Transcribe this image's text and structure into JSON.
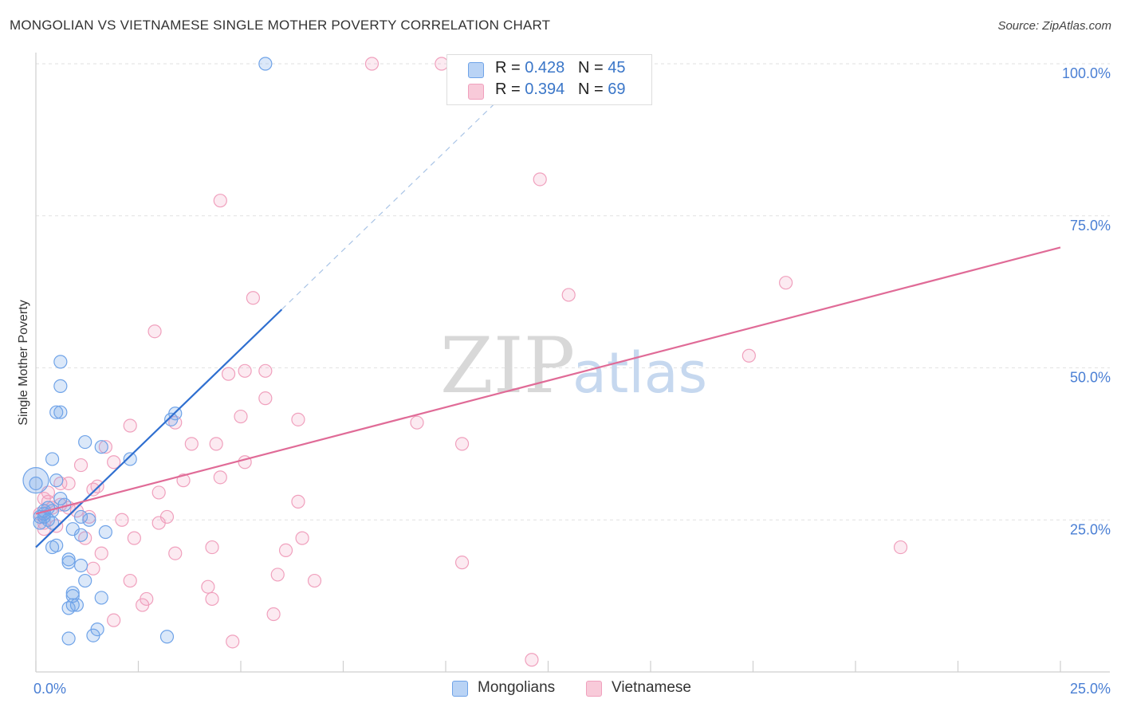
{
  "title": "MONGOLIAN VS VIETNAMESE SINGLE MOTHER POVERTY CORRELATION CHART",
  "source": "Source: ZipAtlas.com",
  "watermark": {
    "zip": "ZIP",
    "atlas": "atlas"
  },
  "legend": {
    "rows": [
      {
        "r_label": "R = ",
        "r_value": "0.428",
        "n_label": "N = ",
        "n_value": "45"
      },
      {
        "r_label": "R = ",
        "r_value": "0.394",
        "n_label": "N = ",
        "n_value": "69"
      }
    ]
  },
  "chart_data": {
    "type": "scatter",
    "title": "MONGOLIAN VS VIETNAMESE SINGLE MOTHER POVERTY CORRELATION CHART",
    "xlabel": "",
    "ylabel": "Single Mother Poverty",
    "xlim": [
      0,
      25
    ],
    "ylim": [
      0,
      100
    ],
    "x_tick_labels": [
      "0.0%",
      "25.0%"
    ],
    "y_tick_labels": [
      "25.0%",
      "50.0%",
      "75.0%",
      "100.0%"
    ],
    "y_tick_values": [
      25,
      50,
      75,
      100
    ],
    "grid": true,
    "legend_position": "top-center",
    "colors": {
      "mongolians": "#6fa3e8",
      "vietnamese": "#f0a0bd",
      "mongolians_line": "#2f6fd0",
      "vietnamese_line": "#e06b97"
    },
    "series": [
      {
        "name": "Mongolians",
        "r": 0.428,
        "n": 45,
        "trend": {
          "x0": 0.0,
          "y0": 20.5,
          "x1": 6.0,
          "y1": 59.6,
          "x_dash_end": 11.2
        },
        "points": [
          [
            5.6,
            100.0
          ],
          [
            0.6,
            51.0
          ],
          [
            0.6,
            47.0
          ],
          [
            0.5,
            42.7
          ],
          [
            0.6,
            42.7
          ],
          [
            3.3,
            41.5
          ],
          [
            3.4,
            42.5
          ],
          [
            1.2,
            37.8
          ],
          [
            1.6,
            37.0
          ],
          [
            2.3,
            35.0
          ],
          [
            0.4,
            35.0
          ],
          [
            0.0,
            31.0
          ],
          [
            0.5,
            31.5
          ],
          [
            0.6,
            28.5
          ],
          [
            0.7,
            27.5
          ],
          [
            0.3,
            27.0
          ],
          [
            0.4,
            26.5
          ],
          [
            0.2,
            26.5
          ],
          [
            0.2,
            25.5
          ],
          [
            0.3,
            25.0
          ],
          [
            0.1,
            25.5
          ],
          [
            0.4,
            24.5
          ],
          [
            1.1,
            25.5
          ],
          [
            1.3,
            25.0
          ],
          [
            0.9,
            23.5
          ],
          [
            1.7,
            23.0
          ],
          [
            1.1,
            22.5
          ],
          [
            0.4,
            20.5
          ],
          [
            0.5,
            20.8
          ],
          [
            0.8,
            18.5
          ],
          [
            0.8,
            18.0
          ],
          [
            1.1,
            17.5
          ],
          [
            1.2,
            15.0
          ],
          [
            0.9,
            13.0
          ],
          [
            0.9,
            12.5
          ],
          [
            1.6,
            12.2
          ],
          [
            0.9,
            11.0
          ],
          [
            0.8,
            10.5
          ],
          [
            1.0,
            11.0
          ],
          [
            1.5,
            7.0
          ],
          [
            1.4,
            6.0
          ],
          [
            0.8,
            5.5
          ],
          [
            3.2,
            5.8
          ],
          [
            0.1,
            24.5
          ],
          [
            0.2,
            26.0
          ]
        ]
      },
      {
        "name": "Vietnamese",
        "r": 0.394,
        "n": 69,
        "trend": {
          "x0": 0.0,
          "y0": 26.0,
          "x1": 25.0,
          "y1": 69.8
        },
        "points": [
          [
            8.2,
            100.0
          ],
          [
            9.9,
            100.0
          ],
          [
            12.3,
            81.0
          ],
          [
            4.5,
            77.5
          ],
          [
            18.3,
            64.0
          ],
          [
            13.0,
            62.0
          ],
          [
            5.3,
            61.5
          ],
          [
            2.9,
            56.0
          ],
          [
            17.4,
            52.0
          ],
          [
            4.7,
            49.0
          ],
          [
            5.1,
            49.5
          ],
          [
            5.6,
            49.5
          ],
          [
            5.6,
            45.0
          ],
          [
            5.0,
            42.0
          ],
          [
            6.4,
            41.5
          ],
          [
            9.3,
            41.0
          ],
          [
            2.3,
            40.5
          ],
          [
            3.4,
            41.0
          ],
          [
            10.4,
            37.5
          ],
          [
            3.8,
            37.5
          ],
          [
            4.4,
            37.5
          ],
          [
            1.7,
            37.0
          ],
          [
            1.9,
            34.5
          ],
          [
            5.1,
            34.5
          ],
          [
            1.1,
            34.0
          ],
          [
            4.5,
            32.0
          ],
          [
            3.6,
            31.5
          ],
          [
            1.5,
            30.5
          ],
          [
            0.6,
            31.0
          ],
          [
            0.8,
            31.0
          ],
          [
            1.4,
            30.0
          ],
          [
            0.3,
            29.5
          ],
          [
            3.0,
            29.5
          ],
          [
            0.2,
            28.5
          ],
          [
            0.3,
            28.0
          ],
          [
            0.6,
            27.5
          ],
          [
            0.4,
            27.0
          ],
          [
            0.8,
            27.0
          ],
          [
            1.0,
            26.5
          ],
          [
            1.3,
            25.5
          ],
          [
            2.1,
            25.0
          ],
          [
            3.0,
            24.5
          ],
          [
            3.2,
            25.5
          ],
          [
            2.4,
            22.0
          ],
          [
            1.2,
            22.0
          ],
          [
            6.5,
            22.0
          ],
          [
            6.4,
            28.0
          ],
          [
            0.2,
            24.5
          ],
          [
            0.5,
            24.0
          ],
          [
            0.2,
            23.5
          ],
          [
            4.3,
            20.5
          ],
          [
            6.1,
            20.0
          ],
          [
            1.6,
            19.5
          ],
          [
            3.4,
            19.5
          ],
          [
            10.4,
            18.0
          ],
          [
            21.1,
            20.5
          ],
          [
            1.4,
            17.0
          ],
          [
            2.3,
            15.0
          ],
          [
            6.8,
            15.0
          ],
          [
            5.9,
            16.0
          ],
          [
            4.2,
            14.0
          ],
          [
            2.7,
            12.0
          ],
          [
            2.6,
            11.0
          ],
          [
            4.3,
            12.0
          ],
          [
            1.9,
            8.5
          ],
          [
            5.8,
            9.5
          ],
          [
            4.8,
            5.0
          ],
          [
            12.1,
            2.0
          ],
          [
            0.1,
            26.0
          ]
        ]
      }
    ]
  },
  "bottom_legend": [
    {
      "label": "Mongolians"
    },
    {
      "label": "Vietnamese"
    }
  ]
}
